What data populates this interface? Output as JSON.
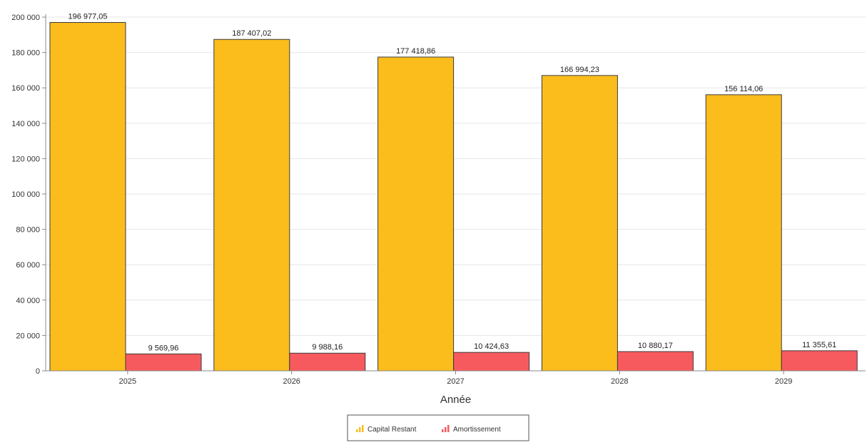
{
  "chart_data": {
    "type": "bar",
    "xlabel": "Année",
    "ylabel": "",
    "ylim": [
      0,
      200000
    ],
    "yticks": [
      0,
      20000,
      40000,
      60000,
      80000,
      100000,
      120000,
      140000,
      160000,
      180000,
      200000
    ],
    "ytick_labels": [
      "0",
      "20 000",
      "40 000",
      "60 000",
      "80 000",
      "100 000",
      "120 000",
      "140 000",
      "160 000",
      "180 000",
      "200 000"
    ],
    "grid": true,
    "legend_position": "bottom",
    "categories": [
      "2025",
      "2026",
      "2027",
      "2028",
      "2029"
    ],
    "series": [
      {
        "name": "Capital Restant",
        "color": "#fbbd1c",
        "values": [
          196977.05,
          187407.02,
          177418.86,
          166994.23,
          156114.06
        ],
        "labels": [
          "196 977,05",
          "187 407,02",
          "177 418,86",
          "166 994,23",
          "156 114,06"
        ]
      },
      {
        "name": "Amortissement",
        "color": "#f75a5e",
        "values": [
          9569.96,
          9988.16,
          10424.63,
          10880.17,
          11355.61
        ],
        "labels": [
          "9 569,96",
          "9 988,16",
          "10 424,63",
          "10 880,17",
          "11 355,61"
        ]
      }
    ]
  }
}
